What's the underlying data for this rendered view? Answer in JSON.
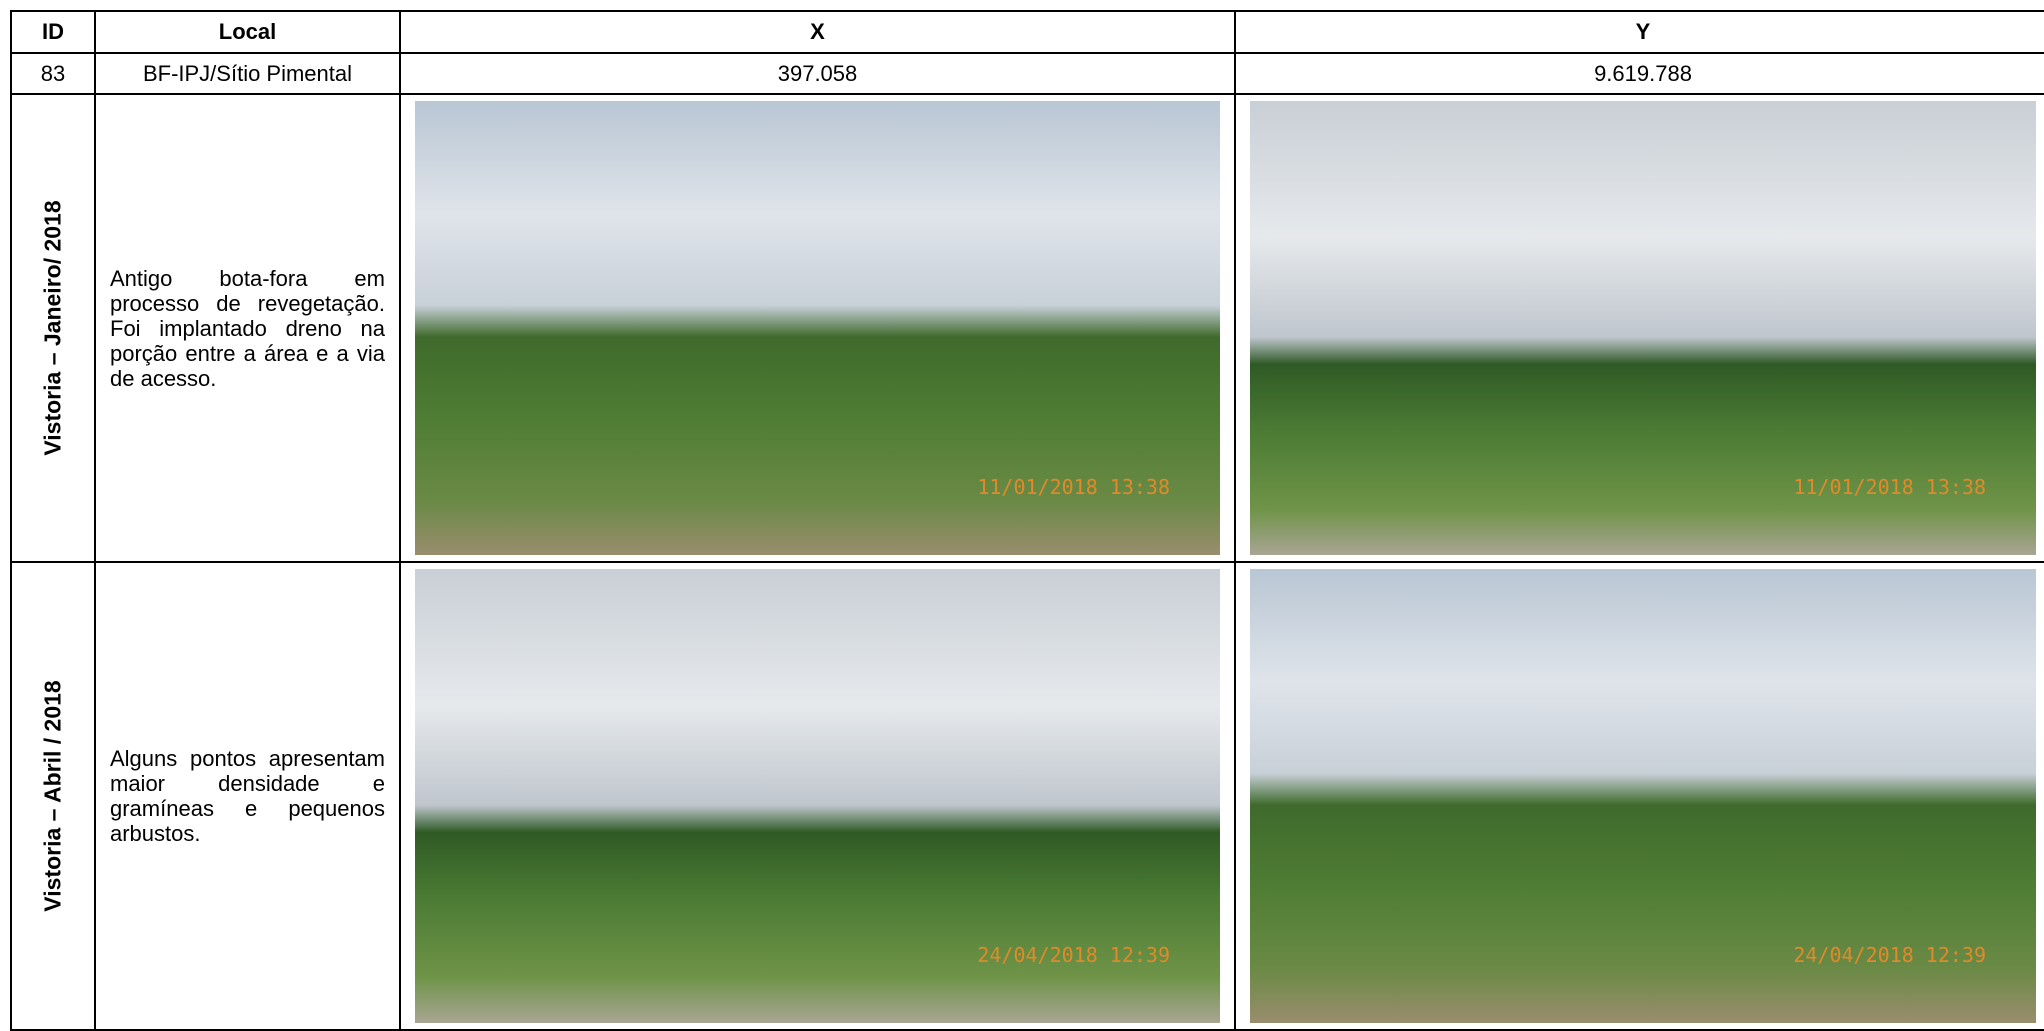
{
  "table": {
    "header": [
      "ID",
      "Local",
      "X",
      "Y"
    ],
    "rows": [
      [
        "83",
        "BF-IPJ/Sítio Pimental",
        "397.058",
        "9.619.788"
      ]
    ],
    "sections": [
      {
        "label": "Vistoria – Janeiro/ 2018",
        "description": "Antigo bota-fora em processo de revegetação. Foi implantado dreno na porção entre a área e a via de acesso.",
        "photos": [
          {
            "timestamp": "11/01/2018 13:38"
          },
          {
            "timestamp": "11/01/2018 13:38"
          }
        ]
      },
      {
        "label": "Vistoria – Abril / 2018",
        "description": "Alguns pontos apresentam maior densidade e gramíneas e pequenos arbustos.",
        "photos": [
          {
            "timestamp": "24/04/2018 12:39"
          },
          {
            "timestamp": "24/04/2018 12:39"
          }
        ]
      }
    ]
  }
}
